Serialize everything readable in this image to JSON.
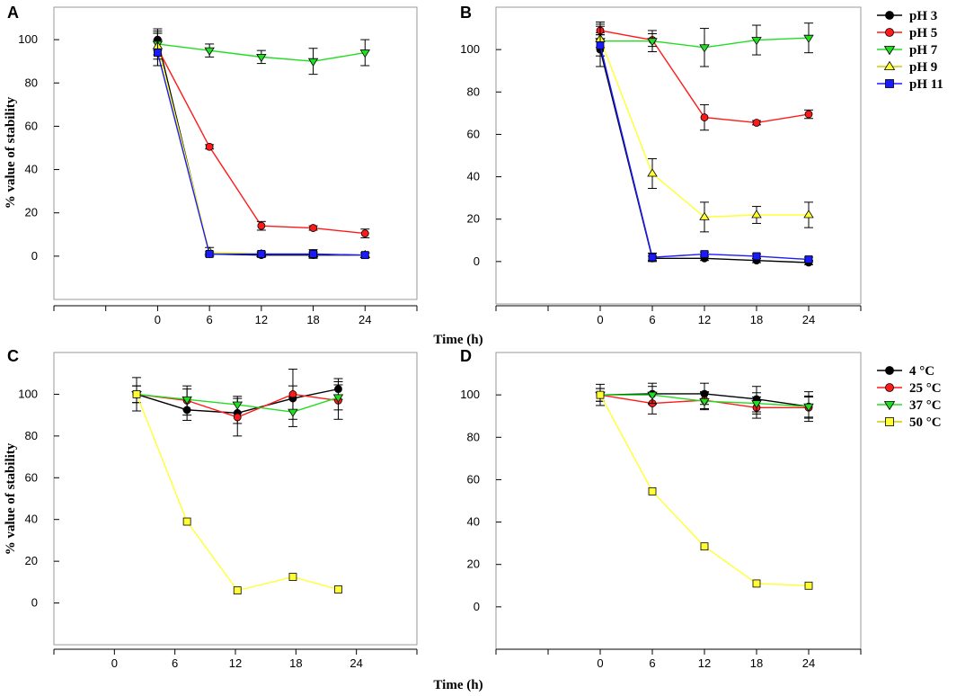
{
  "figure": {
    "shared_xlabel_top": "Time (h)",
    "shared_xlabel_bottom": "Time (h)",
    "legend_top": {
      "entries": [
        {
          "label": "pH 3",
          "color": "#000000",
          "marker": "circle"
        },
        {
          "label": "pH 5",
          "color": "#ff1a1a",
          "marker": "circle"
        },
        {
          "label": "pH 7",
          "color": "#22dd22",
          "marker": "triangle-down"
        },
        {
          "label": "pH 9",
          "color": "#ffff33",
          "marker": "triangle-up"
        },
        {
          "label": "pH 11",
          "color": "#1a1aff",
          "marker": "square"
        }
      ]
    },
    "legend_bottom": {
      "entries": [
        {
          "label": "4 °C",
          "color": "#000000",
          "marker": "circle"
        },
        {
          "label": "25 °C",
          "color": "#ff1a1a",
          "marker": "circle"
        },
        {
          "label": "37 °C",
          "color": "#22dd22",
          "marker": "triangle-down"
        },
        {
          "label": "50 °C",
          "color": "#ffff33",
          "marker": "square"
        }
      ]
    }
  },
  "chart_data": [
    {
      "panel": "A",
      "type": "line",
      "xlabel": "",
      "ylabel": "% value of stability",
      "xlim": [
        -12,
        30
      ],
      "ylim": [
        -20,
        115
      ],
      "xticks": [
        0,
        6,
        12,
        18,
        24
      ],
      "yticks": [
        0,
        20,
        40,
        60,
        80,
        100
      ],
      "series": [
        {
          "name": "pH 3",
          "color": "#000000",
          "marker": "circle",
          "x": [
            0,
            6,
            12,
            18,
            24
          ],
          "values": [
            100,
            1,
            0.5,
            0.5,
            0.5
          ],
          "err": [
            5,
            1,
            1,
            1,
            1
          ]
        },
        {
          "name": "pH 5",
          "color": "#ff1a1a",
          "marker": "circle",
          "x": [
            0,
            6,
            12,
            18,
            24
          ],
          "values": [
            96,
            50.5,
            14,
            13,
            10.5
          ],
          "err": [
            8,
            1,
            2,
            1,
            2
          ]
        },
        {
          "name": "pH 7",
          "color": "#22dd22",
          "marker": "triangle-down",
          "x": [
            0,
            6,
            12,
            18,
            24
          ],
          "values": [
            98,
            95,
            92,
            90,
            94
          ],
          "err": [
            5,
            3,
            3,
            6,
            6
          ]
        },
        {
          "name": "pH 9",
          "color": "#ffff33",
          "marker": "triangle-up",
          "x": [
            0,
            6,
            12,
            18,
            24
          ],
          "values": [
            97,
            2,
            1,
            1,
            0.5
          ],
          "err": [
            6,
            2,
            1,
            1,
            1
          ]
        },
        {
          "name": "pH 11",
          "color": "#1a1aff",
          "marker": "square",
          "x": [
            0,
            6,
            12,
            18,
            24
          ],
          "values": [
            94,
            1,
            1,
            1,
            0.5
          ],
          "err": [
            6,
            1,
            1,
            2,
            1
          ]
        }
      ]
    },
    {
      "panel": "B",
      "type": "line",
      "xlabel": "",
      "ylabel": "",
      "xlim": [
        -12,
        30
      ],
      "ylim": [
        -20,
        120
      ],
      "xticks": [
        0,
        6,
        12,
        18,
        24
      ],
      "yticks": [
        0,
        20,
        40,
        60,
        80,
        100
      ],
      "series": [
        {
          "name": "pH 3",
          "color": "#000000",
          "marker": "circle",
          "x": [
            0,
            6,
            12,
            18,
            24
          ],
          "values": [
            100,
            1.5,
            1.5,
            0.5,
            -0.5
          ],
          "err": [
            8,
            1,
            1,
            1,
            1
          ]
        },
        {
          "name": "pH 5",
          "color": "#ff1a1a",
          "marker": "circle",
          "x": [
            0,
            6,
            12,
            18,
            24
          ],
          "values": [
            109,
            104.5,
            68,
            65.5,
            69.5
          ],
          "err": [
            2,
            3,
            6,
            1,
            2
          ]
        },
        {
          "name": "pH 7",
          "color": "#22dd22",
          "marker": "triangle-down",
          "x": [
            0,
            6,
            12,
            18,
            24
          ],
          "values": [
            104,
            104,
            101,
            104.5,
            105.5
          ],
          "err": [
            3,
            5,
            9,
            7,
            7
          ]
        },
        {
          "name": "pH 9",
          "color": "#ffff33",
          "marker": "triangle-up",
          "x": [
            0,
            6,
            12,
            18,
            24
          ],
          "values": [
            105,
            41.5,
            21,
            22,
            22
          ],
          "err": [
            8,
            7,
            7,
            4,
            6
          ]
        },
        {
          "name": "pH 11",
          "color": "#1a1aff",
          "marker": "square",
          "x": [
            0,
            6,
            12,
            18,
            24
          ],
          "values": [
            102,
            2,
            3.5,
            2.5,
            1
          ],
          "err": [
            10,
            2,
            1,
            1,
            1
          ]
        }
      ]
    },
    {
      "panel": "C",
      "type": "line",
      "xlabel": "",
      "ylabel": "% value of stability",
      "xlim": [
        -6,
        30
      ],
      "ylim": [
        -20,
        120
      ],
      "xticks": [
        0,
        6,
        12,
        18,
        24
      ],
      "yticks": [
        0,
        20,
        40,
        60,
        80,
        100
      ],
      "series": [
        {
          "name": "4 °C",
          "color": "#000000",
          "marker": "circle",
          "x": [
            2.2,
            7.2,
            12.2,
            17.7,
            22.2
          ],
          "values": [
            100,
            92.5,
            91,
            98,
            102.5
          ],
          "err": [
            8,
            5,
            5,
            6,
            5
          ]
        },
        {
          "name": "25 °C",
          "color": "#ff1a1a",
          "marker": "circle",
          "x": [
            2.2,
            7.2,
            12.2,
            17.7,
            22.2
          ],
          "values": [
            100,
            97,
            89,
            100,
            97
          ],
          "err": [
            4,
            7,
            9,
            12,
            9
          ]
        },
        {
          "name": "37 °C",
          "color": "#22dd22",
          "marker": "triangle-down",
          "x": [
            2.2,
            7.2,
            12.2,
            17.7,
            22.2
          ],
          "values": [
            100,
            97.5,
            95,
            91.5,
            98.5
          ],
          "err": [
            4,
            5,
            4,
            7,
            6
          ]
        },
        {
          "name": "50 °C",
          "color": "#ffff33",
          "marker": "square",
          "x": [
            2.2,
            7.2,
            12.2,
            17.7,
            22.2
          ],
          "values": [
            100,
            39,
            6,
            12.5,
            6.5
          ],
          "err": [
            0,
            0,
            0,
            0,
            0
          ]
        }
      ]
    },
    {
      "panel": "D",
      "type": "line",
      "xlabel": "",
      "ylabel": "",
      "xlim": [
        -12,
        30
      ],
      "ylim": [
        -20,
        120
      ],
      "xticks": [
        0,
        6,
        12,
        18,
        24
      ],
      "yticks": [
        0,
        20,
        40,
        60,
        80,
        100
      ],
      "series": [
        {
          "name": "4 °C",
          "color": "#000000",
          "marker": "circle",
          "x": [
            0,
            6,
            12,
            18,
            24
          ],
          "values": [
            100,
            100.5,
            100.5,
            98,
            94.5
          ],
          "err": [
            5,
            5,
            5,
            6,
            7
          ]
        },
        {
          "name": "25 °C",
          "color": "#ff1a1a",
          "marker": "circle",
          "x": [
            0,
            6,
            12,
            18,
            24
          ],
          "values": [
            100,
            96,
            97.5,
            94,
            94
          ],
          "err": [
            3,
            5,
            4,
            5,
            5
          ]
        },
        {
          "name": "37 °C",
          "color": "#22dd22",
          "marker": "triangle-down",
          "x": [
            0,
            6,
            12,
            18,
            24
          ],
          "values": [
            100,
            100,
            97,
            96,
            94.5
          ],
          "err": [
            3,
            4,
            4,
            5,
            5
          ]
        },
        {
          "name": "50 °C",
          "color": "#ffff33",
          "marker": "square",
          "x": [
            0,
            6,
            12,
            18,
            24
          ],
          "values": [
            100,
            54.5,
            28.5,
            11,
            10
          ],
          "err": [
            0,
            0,
            0,
            0,
            0
          ]
        }
      ]
    }
  ]
}
